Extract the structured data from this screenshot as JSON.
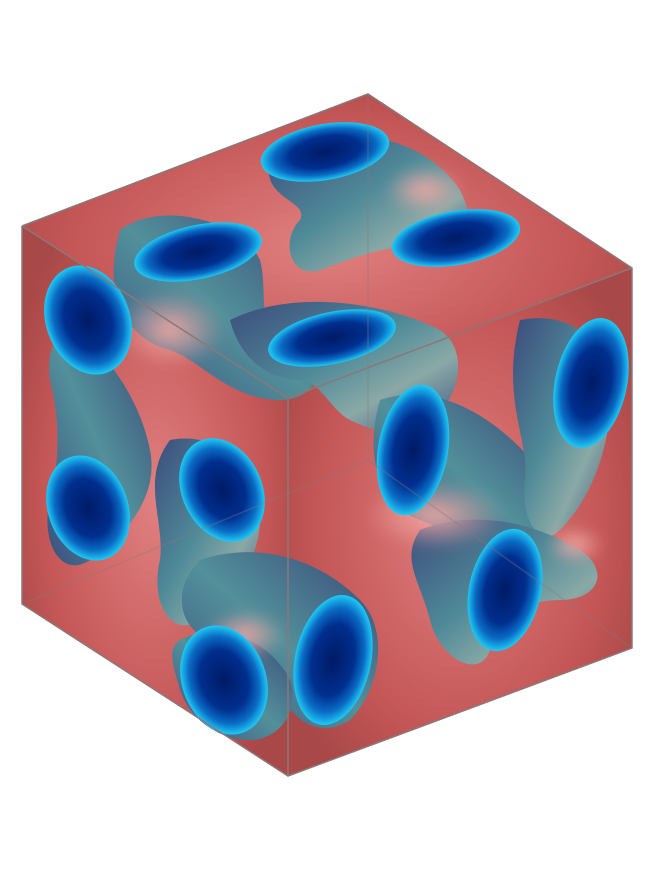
{
  "colors": {
    "background": "#ffffff",
    "face_red": "#c85858",
    "face_red_dark": "#a04848",
    "face_glow": "#e88a8a",
    "tube_dark": "#3a4a78",
    "tube_mid": "#4d8296",
    "tube_light": "#7fa8a8",
    "tube_highlight": "#e89a96",
    "cap_core": "#001a66",
    "cap_mid": "#0a5ab8",
    "cap_rim": "#19c8f5",
    "edge": "#8a7878"
  },
  "scene": {
    "subject": "gyroid-minimal-surface-in-cube",
    "icon": "cube-3d-render"
  }
}
